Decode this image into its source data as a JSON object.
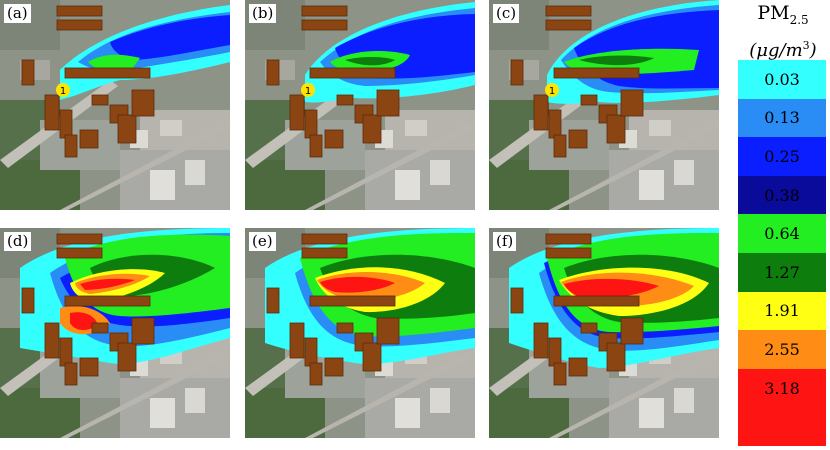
{
  "panels": [
    {
      "id": "a",
      "label": "(a)",
      "source_label": "1",
      "show_source": true
    },
    {
      "id": "b",
      "label": "(b)",
      "source_label": "1",
      "show_source": true
    },
    {
      "id": "c",
      "label": "(c)",
      "source_label": "1",
      "show_source": true
    },
    {
      "id": "d",
      "label": "(d)",
      "source_label": "",
      "show_source": false
    },
    {
      "id": "e",
      "label": "(e)",
      "source_label": "",
      "show_source": false
    },
    {
      "id": "f",
      "label": "(f)",
      "source_label": "",
      "show_source": false
    }
  ],
  "legend": {
    "title_main": "PM",
    "title_sub": "2.5",
    "unit_mu": "(μg/m",
    "unit_exp": "3",
    "unit_close": ")",
    "levels": [
      {
        "label": "0.03",
        "color": "#33ffff"
      },
      {
        "label": "0.13",
        "color": "#2a8cf5"
      },
      {
        "label": "0.25",
        "color": "#0a1eff"
      },
      {
        "label": "0.38",
        "color": "#0a0a9b"
      },
      {
        "label": "0.64",
        "color": "#22ee22"
      },
      {
        "label": "1.27",
        "color": "#0d7d0d"
      },
      {
        "label": "1.91",
        "color": "#ffff14"
      },
      {
        "label": "2.55",
        "color": "#ff8c14"
      },
      {
        "label": "3.18",
        "color": "#ff1414"
      },
      {
        "label": "",
        "color": "#ff1414"
      }
    ]
  },
  "colors": {
    "building": "#8b4513",
    "source_marker": "#ffe400",
    "map_base": "#8d9487"
  }
}
